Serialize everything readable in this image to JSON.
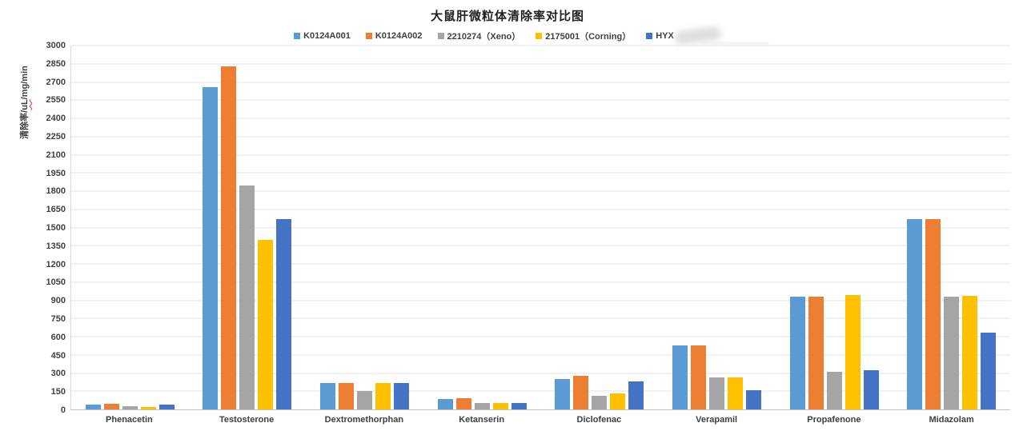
{
  "title": "大鼠肝微粒体清除率对比图",
  "y_axis": {
    "prefix": "清除率/",
    "misspelled_segment": "uL",
    "suffix": "/mg/min",
    "squiggle_color": "#ff2a2a"
  },
  "colors": {
    "background": "#ffffff",
    "gridline": "#e3e3e3",
    "axis_line": "#bfbfbf",
    "label_text": "#404040",
    "title_text": "#1f1f1f"
  },
  "chart_data": {
    "type": "bar",
    "title": "大鼠肝微粒体清除率对比图",
    "ylabel": "清除率/uL/mg/min",
    "xlabel": "",
    "ylim": [
      0,
      3000
    ],
    "ytick_step": 150,
    "ytick_labels": [
      0,
      150,
      300,
      450,
      600,
      750,
      900,
      1050,
      1200,
      1350,
      1500,
      1650,
      1800,
      1950,
      2100,
      2250,
      2400,
      2550,
      2700,
      2850,
      3000
    ],
    "grid": true,
    "legend_position": "top",
    "categories": [
      "Phenacetin",
      "Testosterone",
      "Dextromethorphan",
      "Ketanserin",
      "Diclofenac",
      "Verapamil",
      "Propafenone",
      "Midazolam"
    ],
    "series": [
      {
        "name": "K0124A001",
        "color": "#5B9BD5",
        "redacted": false,
        "values": [
          40,
          2660,
          215,
          85,
          250,
          530,
          930,
          1570
        ]
      },
      {
        "name": "K0124A002",
        "color": "#ED7D31",
        "redacted": false,
        "values": [
          45,
          2830,
          215,
          90,
          280,
          530,
          930,
          1570
        ]
      },
      {
        "name": "2210274（Xeno）",
        "color": "#A5A5A5",
        "redacted": false,
        "values": [
          28,
          1845,
          150,
          55,
          115,
          265,
          310,
          930
        ]
      },
      {
        "name": "2175001（Corning）",
        "color": "#FFC000",
        "redacted": false,
        "values": [
          18,
          1395,
          220,
          50,
          135,
          265,
          945,
          935
        ]
      },
      {
        "name": "HYX",
        "color": "#4472C4",
        "redacted": true,
        "values": [
          40,
          1570,
          220,
          55,
          230,
          160,
          320,
          630
        ]
      }
    ]
  }
}
